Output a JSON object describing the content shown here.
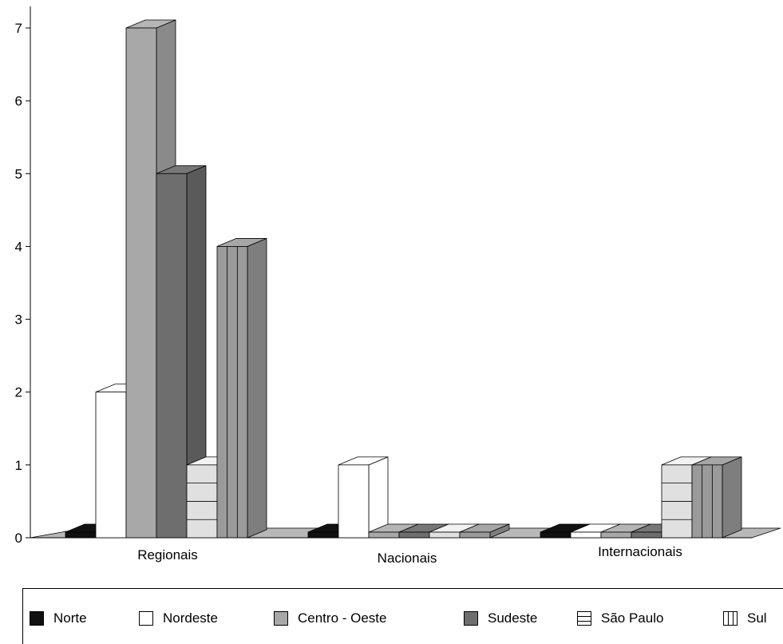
{
  "chart_data": {
    "type": "bar",
    "title": "",
    "xlabel": "",
    "ylabel": "",
    "ylim": [
      0,
      7
    ],
    "yticks": [
      "0",
      "1",
      "2",
      "3",
      "4",
      "5",
      "6",
      "7"
    ],
    "categories": [
      "Regionais",
      "Nacionais",
      "Internacionais"
    ],
    "series": [
      {
        "name": "Norte",
        "values": [
          0,
          0,
          0
        ],
        "fill": "#111111",
        "pattern": "solid"
      },
      {
        "name": "Nordeste",
        "values": [
          2,
          1,
          0
        ],
        "fill": "#ffffff",
        "pattern": "solid"
      },
      {
        "name": "Centro - Oeste",
        "values": [
          7,
          0,
          0
        ],
        "fill": "#a8a8a8",
        "pattern": "solid"
      },
      {
        "name": "Sudeste",
        "values": [
          5,
          0,
          0
        ],
        "fill": "#6e6e6e",
        "pattern": "solid"
      },
      {
        "name": "São Paulo",
        "values": [
          1,
          0,
          1
        ],
        "fill": "#e0e0e0",
        "pattern": "hlines"
      },
      {
        "name": "Sul",
        "values": [
          4,
          0,
          1
        ],
        "fill": "#9a9a9a",
        "pattern": "vlines"
      }
    ],
    "legend": {
      "position": "bottom"
    },
    "grid": false
  }
}
